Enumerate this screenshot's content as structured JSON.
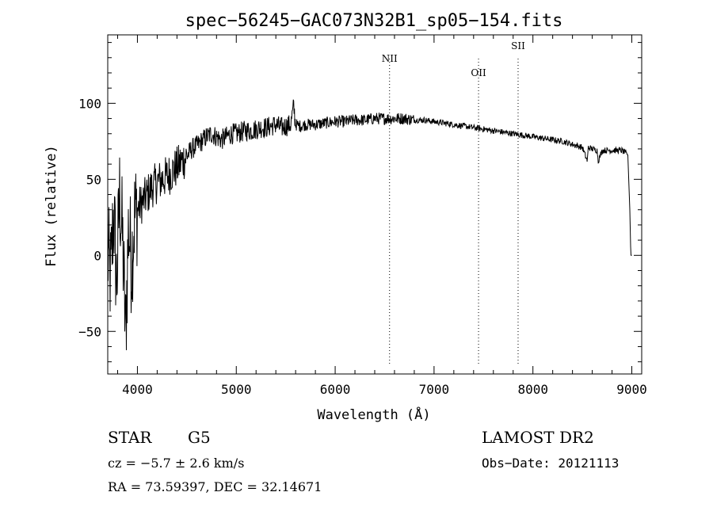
{
  "chart_data": {
    "type": "line",
    "title": "spec−56245−GAC073N32B1_sp05−154.fits",
    "xlabel": "Wavelength (Å)",
    "ylabel": "Flux (relative)",
    "xlim": [
      3700,
      9100
    ],
    "ylim": [
      -78,
      145
    ],
    "x_ticks": [
      4000,
      5000,
      6000,
      7000,
      8000,
      9000
    ],
    "y_ticks": [
      -50,
      0,
      50,
      100
    ],
    "y_tick_labels": [
      "−50",
      "0",
      "50",
      "100"
    ],
    "grid": false,
    "lines": [
      {
        "label": "NII",
        "x": 6550
      },
      {
        "label": "OII",
        "x": 7450
      },
      {
        "label": "SII",
        "x": 7850
      }
    ],
    "series": [
      {
        "x": [
          3700,
          3730,
          3760,
          3790,
          3820,
          3850,
          3880,
          3910,
          3940,
          3970,
          4000,
          4050,
          4100,
          4150,
          4200,
          4250,
          4300,
          4350,
          4400,
          4450,
          4500,
          4550,
          4600,
          4650,
          4700,
          4750,
          4800,
          4850,
          4900,
          4950,
          5000,
          5050,
          5100,
          5150,
          5200,
          5250,
          5300,
          5350,
          5400,
          5450,
          5500,
          5550,
          5580,
          5600,
          5650,
          5700,
          5800,
          5900,
          6000,
          6100,
          6200,
          6300,
          6400,
          6500,
          6600,
          6700,
          6800,
          6900,
          7000,
          7100,
          7200,
          7300,
          7400,
          7500,
          7600,
          7700,
          7800,
          7900,
          8000,
          8100,
          8200,
          8300,
          8400,
          8500,
          8550,
          8560,
          8600,
          8650,
          8660,
          8700,
          8800,
          8900,
          8960,
          8980,
          8990,
          9000
        ],
        "y": [
          0,
          -15,
          30,
          -20,
          40,
          10,
          -52,
          20,
          -5,
          25,
          30,
          35,
          40,
          45,
          48,
          50,
          52,
          55,
          58,
          62,
          65,
          70,
          72,
          75,
          78,
          80,
          78,
          76,
          78,
          80,
          80,
          81,
          82,
          82,
          83,
          84,
          84,
          85,
          86,
          84,
          85,
          86,
          98,
          86,
          85,
          86,
          86,
          87,
          88,
          88,
          89,
          89,
          90,
          90,
          90,
          90,
          89,
          89,
          88,
          87,
          86,
          85,
          84,
          83,
          82,
          81,
          80,
          79,
          78,
          77,
          76,
          75,
          73,
          71,
          62,
          71,
          70,
          69,
          62,
          69,
          69,
          69,
          66,
          30,
          0,
          0
        ]
      }
    ]
  },
  "annotations": {
    "object_type": "STAR",
    "subclass": "G5",
    "survey": "LAMOST DR2",
    "cz": "cz = −5.7 ± 2.6 km/s",
    "obs_date": "Obs−Date: 20121113",
    "coords": "RA =  73.59397, DEC =  32.14671"
  }
}
